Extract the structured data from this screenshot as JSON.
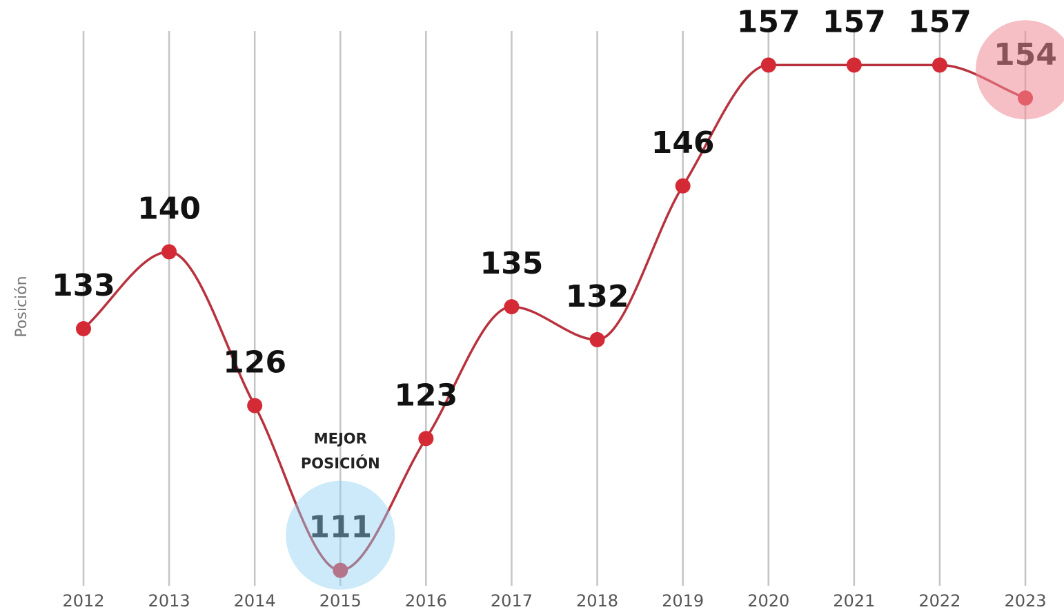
{
  "chart_data": {
    "type": "line",
    "y_label": "Posición",
    "categories": [
      "2012",
      "2013",
      "2014",
      "2015",
      "2016",
      "2017",
      "2018",
      "2019",
      "2020",
      "2021",
      "2022",
      "2023"
    ],
    "series": [
      {
        "name": "Posición",
        "color": "#b8323e",
        "values": [
          133,
          140,
          126,
          111,
          123,
          135,
          132,
          146,
          157,
          157,
          157,
          154
        ]
      }
    ],
    "marker_color": "#d42a36",
    "ylim": [
      109.6,
      160.1
    ],
    "grid": true,
    "annotation": {
      "lines": [
        "MEJOR",
        "POSICIÓN"
      ],
      "category_index": 3,
      "color": "#8fd0f2"
    },
    "last_highlight_color": "#ef8a95"
  }
}
